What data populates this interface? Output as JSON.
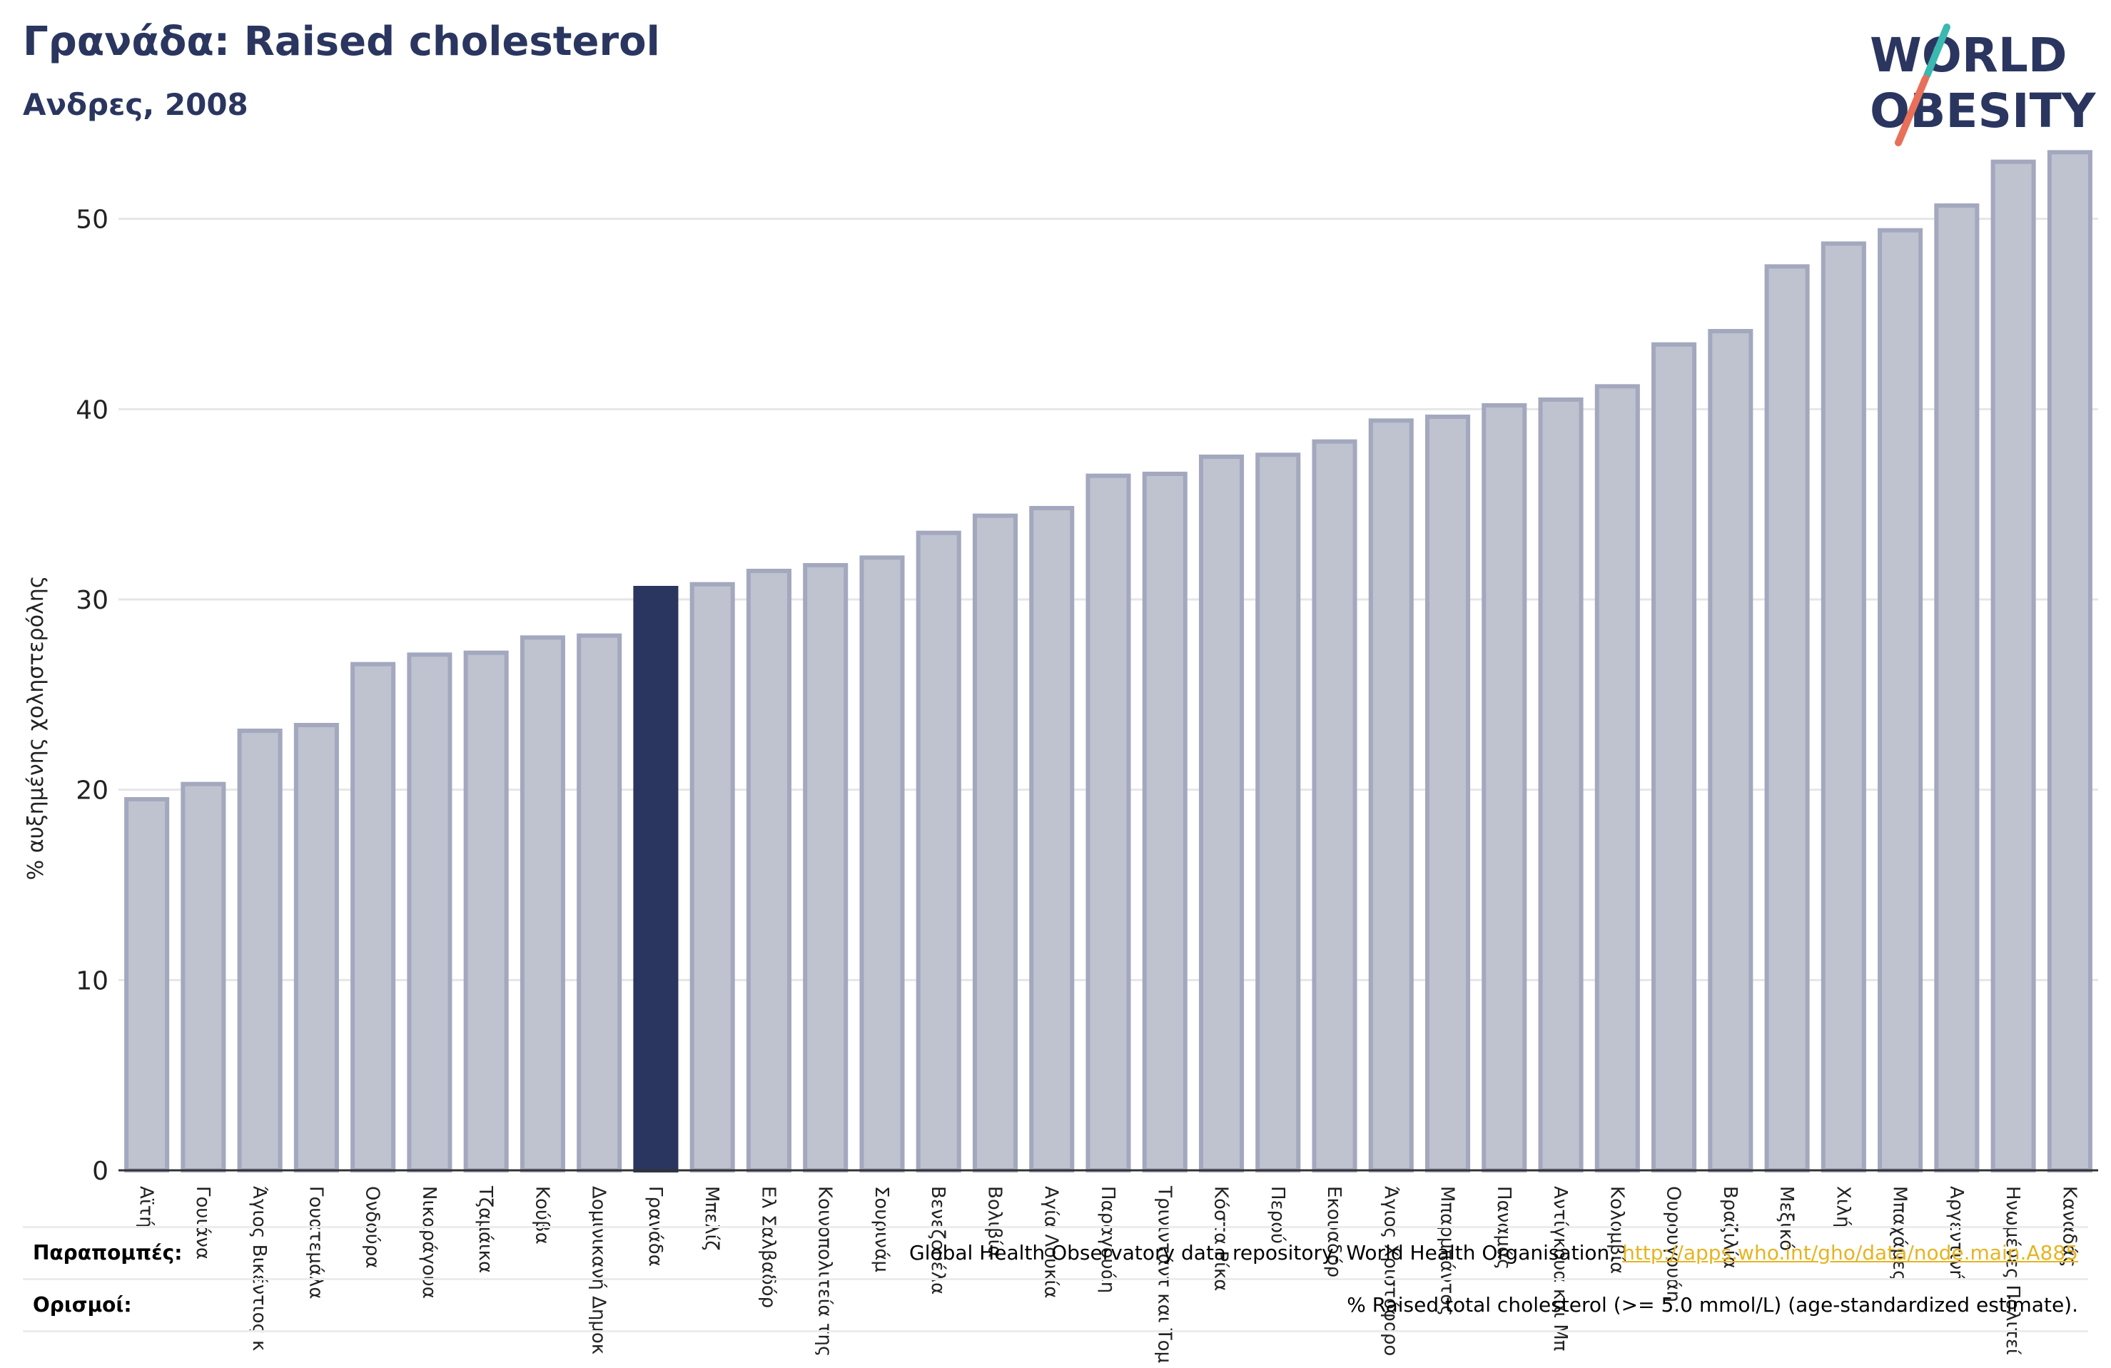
{
  "header": {
    "title": "Γρανάδα: Raised cholesterol",
    "subtitle": "Ανδρες, 2008"
  },
  "logo": {
    "line1": "WORLD",
    "line2": "OBESITY",
    "slash_color_top": "#3bb8b0",
    "slash_color_bottom": "#e8705a",
    "text_color": "#2a365f"
  },
  "colors": {
    "highlight": "#2a365f",
    "bar": "#bfc2cf",
    "bar_edge": "#a3a8be"
  },
  "chart_data": {
    "type": "bar",
    "title": "Γρανάδα: Raised cholesterol",
    "subtitle": "Ανδρες, 2008",
    "ylabel": "% αυξημένης χοληστερόλης",
    "xlabel": "",
    "ylim": [
      0,
      54
    ],
    "yticks": [
      0,
      10,
      20,
      30,
      40,
      50
    ],
    "grid": true,
    "highlight": "Γρανάδα",
    "categories": [
      "Αϊτή",
      "Γουιάνα",
      "Άγιος Βικέντιος κ",
      "Γουατεμάλα",
      "Ονδούρα",
      "Νικαράγουα",
      "Τζαμάικα",
      "Κούβα",
      "Δομινικανή Δημοκ",
      "Γρανάδα",
      "Μπελίζ",
      "Ελ Σαλβαδόρ",
      "Κοινοπολιτεία της",
      "Σουρινάμ",
      "Βενεζουέλα",
      "Βολιβία",
      "Αγία Λουκία",
      "Παραγουάη",
      "Τρινιντάντ και Τομ",
      "Κόστα Ρίκα",
      "Περού",
      "Εκουαδόρ",
      "Άγιος Χριστόφορο",
      "Μπαρμπάντος",
      "Παναμάς",
      "Αντίγκουα και Μπ",
      "Κολομβία",
      "Ουρουγουάη",
      "Βραζιλία",
      "Μεξικό",
      "Χιλή",
      "Μπαχάμες",
      "Αργεντινή",
      "Ηνωμένες Πολιτεί",
      "Καναδάς"
    ],
    "values": [
      19.5,
      20.3,
      23.1,
      23.4,
      26.6,
      27.1,
      27.2,
      28.0,
      28.1,
      30.6,
      30.8,
      31.5,
      31.8,
      32.2,
      33.5,
      34.4,
      34.8,
      36.5,
      36.6,
      37.5,
      37.6,
      38.3,
      39.4,
      39.6,
      40.2,
      40.5,
      41.2,
      43.4,
      44.1,
      47.5,
      48.7,
      49.4,
      50.7,
      53.0,
      53.5
    ]
  },
  "footer": {
    "refs_label": "Παραπομπές:",
    "refs_text": "Global Health Observatory data repository, World Health Organisation,",
    "refs_link": "http://apps.who.int/gho/data/node.main.A885",
    "defs_label": "Ορισμοί:",
    "defs_text": "% Raised total cholesterol (>= 5.0 mmol/L) (age-standardized estimate)."
  }
}
